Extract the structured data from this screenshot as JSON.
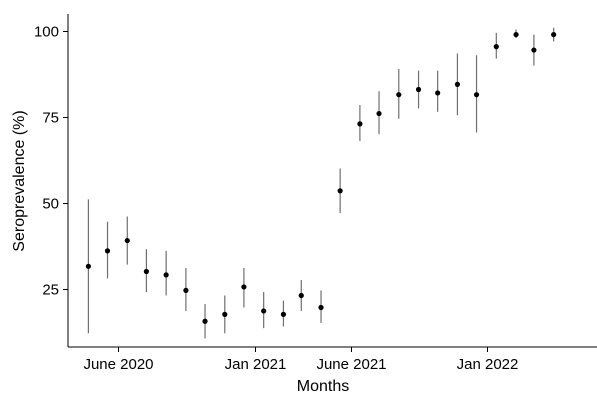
{
  "chart_data": {
    "type": "scatter",
    "title": "",
    "xlabel": "Months",
    "ylabel": "Seroprevalence (%)",
    "ylim": [
      8,
      105
    ],
    "xlim": [
      "2020-03-14",
      "2022-06-22"
    ],
    "yticks": [
      25,
      50,
      75,
      100
    ],
    "xticks": [
      {
        "date": "2020-06-01",
        "label": "June 2020"
      },
      {
        "date": "2021-01-01",
        "label": "Jan 2021"
      },
      {
        "date": "2021-06-01",
        "label": "June 2021"
      },
      {
        "date": "2022-01-01",
        "label": "Jan 2022"
      }
    ],
    "grid": false,
    "error_bars": true,
    "point_color": "#000000",
    "errorbar_color": "#6f6f6f",
    "points": [
      {
        "x": "2020-04-15",
        "y": 31.5,
        "low": 12.0,
        "high": 51.0
      },
      {
        "x": "2020-05-15",
        "y": 36.0,
        "low": 28.0,
        "high": 44.5
      },
      {
        "x": "2020-06-15",
        "y": 39.0,
        "low": 32.0,
        "high": 46.0
      },
      {
        "x": "2020-07-15",
        "y": 30.0,
        "low": 24.0,
        "high": 36.5
      },
      {
        "x": "2020-08-15",
        "y": 29.0,
        "low": 23.0,
        "high": 36.0
      },
      {
        "x": "2020-09-15",
        "y": 24.5,
        "low": 18.5,
        "high": 31.0
      },
      {
        "x": "2020-10-15",
        "y": 15.5,
        "low": 10.5,
        "high": 20.5
      },
      {
        "x": "2020-11-15",
        "y": 17.5,
        "low": 12.0,
        "high": 23.0
      },
      {
        "x": "2020-12-15",
        "y": 25.5,
        "low": 19.5,
        "high": 31.0
      },
      {
        "x": "2021-01-15",
        "y": 18.5,
        "low": 13.5,
        "high": 24.0
      },
      {
        "x": "2021-02-15",
        "y": 17.5,
        "low": 14.0,
        "high": 21.5
      },
      {
        "x": "2021-03-15",
        "y": 23.0,
        "low": 18.5,
        "high": 27.5
      },
      {
        "x": "2021-04-15",
        "y": 19.5,
        "low": 15.0,
        "high": 24.5
      },
      {
        "x": "2021-05-15",
        "y": 53.5,
        "low": 47.0,
        "high": 60.0
      },
      {
        "x": "2021-06-15",
        "y": 73.0,
        "low": 68.0,
        "high": 78.5
      },
      {
        "x": "2021-07-15",
        "y": 76.0,
        "low": 70.0,
        "high": 82.5
      },
      {
        "x": "2021-08-15",
        "y": 81.5,
        "low": 74.5,
        "high": 89.0
      },
      {
        "x": "2021-09-15",
        "y": 83.0,
        "low": 77.5,
        "high": 88.5
      },
      {
        "x": "2021-10-15",
        "y": 82.0,
        "low": 76.5,
        "high": 88.5
      },
      {
        "x": "2021-11-15",
        "y": 84.5,
        "low": 75.5,
        "high": 93.5
      },
      {
        "x": "2021-12-15",
        "y": 81.5,
        "low": 70.5,
        "high": 93.0
      },
      {
        "x": "2022-01-15",
        "y": 95.5,
        "low": 92.0,
        "high": 99.5
      },
      {
        "x": "2022-02-15",
        "y": 99.0,
        "low": 98.0,
        "high": 100.5
      },
      {
        "x": "2022-03-15",
        "y": 94.5,
        "low": 90.0,
        "high": 99.0
      },
      {
        "x": "2022-04-15",
        "y": 99.0,
        "low": 97.0,
        "high": 101.0
      }
    ]
  }
}
